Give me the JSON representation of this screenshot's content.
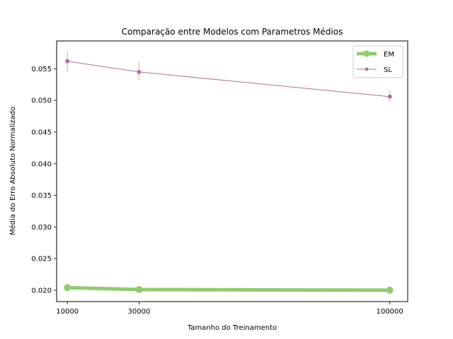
{
  "chart_data": {
    "type": "line",
    "title": "Comparação entre Modelos com Parametros Médios",
    "xlabel": "Tamanho do Treinamento",
    "ylabel": "Média do Erro Absoluto Normalizado",
    "x": [
      10000,
      30000,
      100000
    ],
    "x_tick_labels": [
      "10000",
      "30000",
      "100000"
    ],
    "xlim": [
      7000,
      105000
    ],
    "ylim": [
      0.0182,
      0.0594
    ],
    "y_ticks": [
      0.02,
      0.025,
      0.03,
      0.035,
      0.04,
      0.045,
      0.05,
      0.055
    ],
    "y_tick_labels": [
      "0.020",
      "0.025",
      "0.030",
      "0.035",
      "0.040",
      "0.045",
      "0.050",
      "0.055"
    ],
    "grid": false,
    "legend_position": "top-right",
    "series": [
      {
        "name": "EM",
        "color": "#90cc6e",
        "values": [
          0.0204,
          0.0201,
          0.02
        ],
        "err_low": [
          0.0202,
          0.02,
          0.0199
        ],
        "err_high": [
          0.0205,
          0.0202,
          0.0201
        ]
      },
      {
        "name": "SL",
        "color": "#b4709c",
        "values": [
          0.0562,
          0.0545,
          0.0506
        ],
        "err_low": [
          0.0545,
          0.0532,
          0.0498
        ],
        "err_high": [
          0.0579,
          0.0561,
          0.0516
        ]
      }
    ]
  }
}
